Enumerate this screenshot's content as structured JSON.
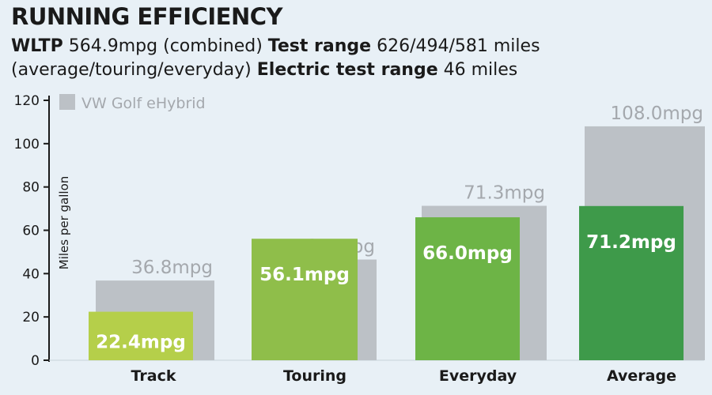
{
  "header": {
    "title": "RUNNING EFFICIENCY",
    "line1": [
      {
        "text": "WLTP",
        "bold": true
      },
      {
        "text": " 564.9mpg (combined) ",
        "bold": false
      },
      {
        "text": "Test range",
        "bold": true
      },
      {
        "text": " 626/494/581 miles",
        "bold": false
      }
    ],
    "line2": [
      {
        "text": "(average/touring/everyday) ",
        "bold": false
      },
      {
        "text": "Electric test range",
        "bold": true
      },
      {
        "text": " 46 miles",
        "bold": false
      }
    ]
  },
  "chart_data": {
    "type": "bar",
    "categories": [
      "Track",
      "Touring",
      "Everyday",
      "Average"
    ],
    "series": [
      {
        "name": "VW Golf eHybrid",
        "values": [
          36.8,
          46.5,
          71.3,
          108.0
        ],
        "labels": [
          "36.8mpg",
          "46.5mpg",
          "71.3mpg",
          "108.0mpg"
        ],
        "color": "#bcc1c6"
      },
      {
        "name": "",
        "values": [
          22.4,
          56.1,
          66.0,
          71.2
        ],
        "labels": [
          "22.4mpg",
          "56.1mpg",
          "66.0mpg",
          "71.2mpg"
        ],
        "colors": [
          "#b5cf4a",
          "#8fbe4a",
          "#6db446",
          "#3e9a4a"
        ]
      }
    ],
    "title": "",
    "xlabel": "",
    "ylabel": "Miles per gallon",
    "ylim": [
      0,
      120
    ],
    "yticks": [
      0,
      20,
      40,
      60,
      80,
      100,
      120
    ],
    "grid": false,
    "legend": "top-left"
  }
}
